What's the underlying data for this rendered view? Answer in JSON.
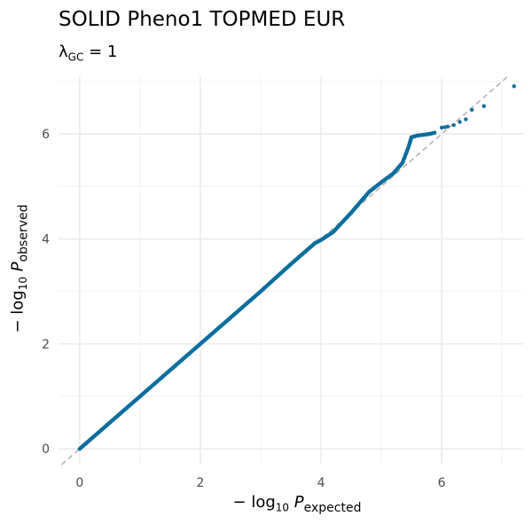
{
  "chart_data": {
    "type": "scatter",
    "title": "SOLID Pheno1 TOPMED EUR",
    "subtitle": {
      "symbol": "λ",
      "sub": "GC",
      "rest": " = 1"
    },
    "xlabel": {
      "prefix": "− log",
      "base": "10",
      "var": " P",
      "sub": "expected"
    },
    "ylabel": {
      "prefix": "− log",
      "base": "10",
      "var": " P",
      "sub": "observed"
    },
    "xlim": [
      -0.35,
      7.35
    ],
    "ylim": [
      -0.3,
      7.1
    ],
    "xticks": [
      0,
      2,
      4,
      6
    ],
    "yticks": [
      0,
      2,
      4,
      6
    ],
    "grid": true,
    "reference_line": "y = x",
    "point_color": "#0b6e9e",
    "series": [
      {
        "trend": [
          [
            0,
            0
          ],
          [
            0.5,
            0.5
          ],
          [
            1,
            1
          ],
          [
            2,
            2
          ],
          [
            3,
            3
          ],
          [
            3.5,
            3.52
          ],
          [
            3.9,
            3.92
          ],
          [
            4.0,
            3.98
          ],
          [
            4.2,
            4.13
          ],
          [
            4.5,
            4.5
          ],
          [
            4.8,
            4.9
          ],
          [
            5.0,
            5.08
          ],
          [
            5.2,
            5.25
          ],
          [
            5.35,
            5.45
          ],
          [
            5.45,
            5.75
          ],
          [
            5.5,
            5.94
          ],
          [
            5.6,
            5.97
          ],
          [
            5.8,
            6.0
          ],
          [
            5.9,
            6.03
          ]
        ],
        "tail_points": [
          [
            6.0,
            6.12
          ],
          [
            6.05,
            6.13
          ],
          [
            6.1,
            6.14
          ],
          [
            6.2,
            6.17
          ],
          [
            6.3,
            6.23
          ],
          [
            6.4,
            6.28
          ],
          [
            6.5,
            6.46
          ],
          [
            6.7,
            6.53
          ],
          [
            7.2,
            6.91
          ]
        ]
      }
    ]
  }
}
